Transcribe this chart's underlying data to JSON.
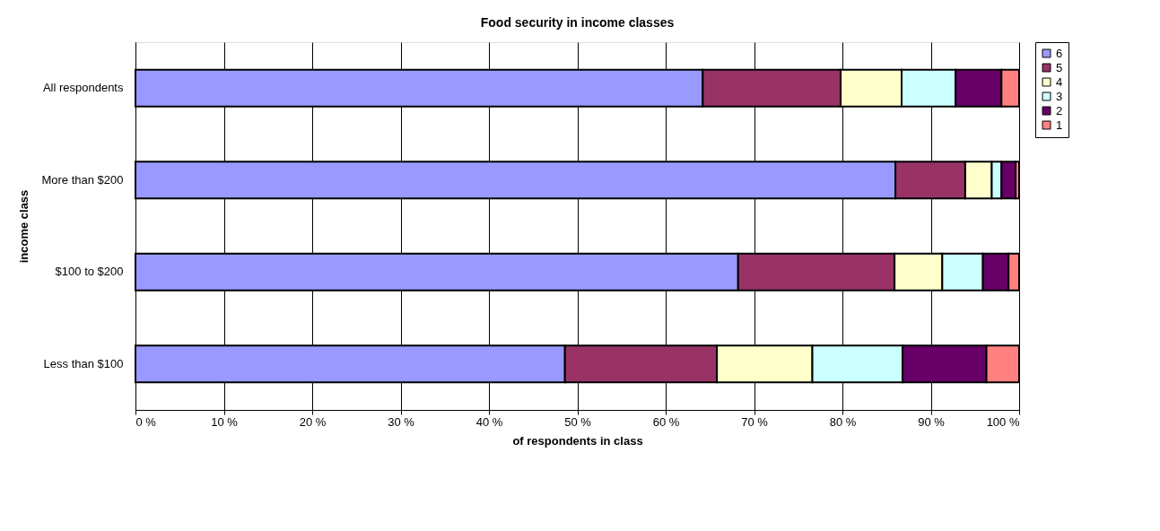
{
  "chart_data": {
    "type": "bar",
    "orientation": "horizontal",
    "stacked": true,
    "title": "Food security in income classes",
    "xlabel": "of respondents in class",
    "ylabel": "income class",
    "categories": [
      "All respondents",
      "More than $200",
      "$100 to $200",
      "Less than $100"
    ],
    "series": [
      {
        "name": "6",
        "color": "#9999ff",
        "values": [
          64.2,
          86.0,
          68.2,
          48.6
        ]
      },
      {
        "name": "5",
        "color": "#993366",
        "values": [
          15.6,
          7.9,
          17.7,
          17.2
        ]
      },
      {
        "name": "4",
        "color": "#ffffcc",
        "values": [
          6.9,
          3.0,
          5.4,
          10.8
        ]
      },
      {
        "name": "3",
        "color": "#ccffff",
        "values": [
          6.1,
          1.1,
          4.6,
          10.2
        ]
      },
      {
        "name": "2",
        "color": "#660066",
        "values": [
          5.2,
          1.6,
          2.9,
          9.5
        ]
      },
      {
        "name": "1",
        "color": "#ff8080",
        "values": [
          2.0,
          0.4,
          1.2,
          3.7
        ]
      }
    ],
    "xlim": [
      0,
      100
    ],
    "xticks": [
      {
        "value": 0,
        "label": "0 %"
      },
      {
        "value": 10,
        "label": "10 %"
      },
      {
        "value": 20,
        "label": "20 %"
      },
      {
        "value": 30,
        "label": "30 %"
      },
      {
        "value": 40,
        "label": "40 %"
      },
      {
        "value": 50,
        "label": "50 %"
      },
      {
        "value": 60,
        "label": "60 %"
      },
      {
        "value": 70,
        "label": "70 %"
      },
      {
        "value": 80,
        "label": "80 %"
      },
      {
        "value": 90,
        "label": "90 %"
      },
      {
        "value": 100,
        "label": "100 %"
      }
    ],
    "grid": "x",
    "legend": "right"
  }
}
